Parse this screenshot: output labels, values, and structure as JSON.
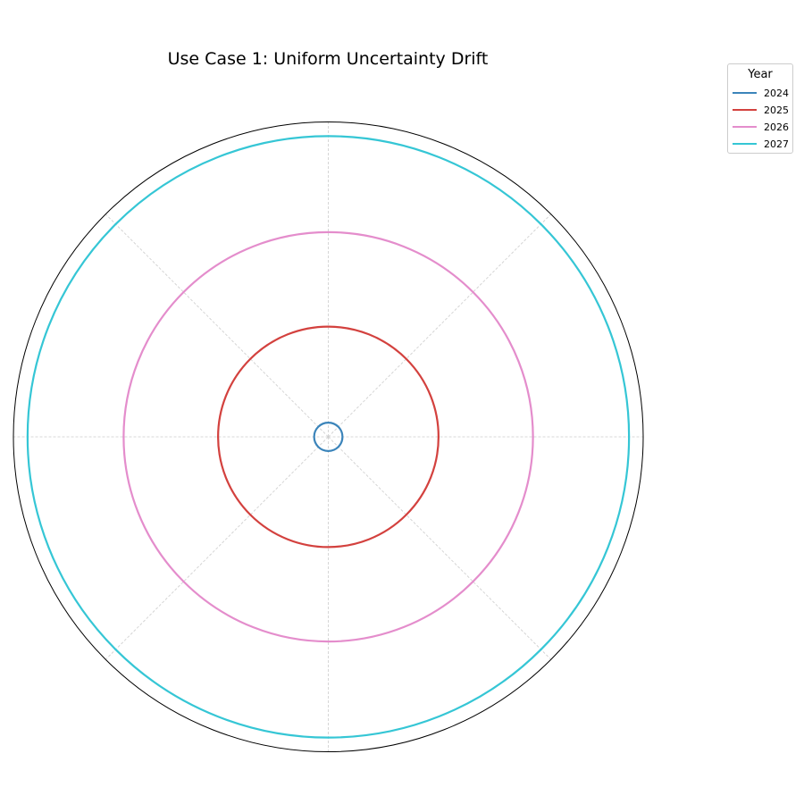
{
  "chart_data": {
    "type": "line",
    "projection": "polar",
    "title": "Use Case 1: Uniform Uncertainty Drift",
    "legend": {
      "title": "Year",
      "placement": "upper-right-outside"
    },
    "series": [
      {
        "name": "2024",
        "radius": 0.045,
        "color": "#3b84ba"
      },
      {
        "name": "2025",
        "radius": 0.35,
        "color": "#d3413e"
      },
      {
        "name": "2026",
        "radius": 0.65,
        "color": "#e48dcc"
      },
      {
        "name": "2027",
        "radius": 0.955,
        "color": "#35c6d5"
      }
    ],
    "rlim": [
      0,
      1
    ],
    "radial_ticks_shown": false,
    "angular_ticks_shown": false,
    "grid": {
      "angular_lines_deg": [
        0,
        45,
        90,
        135,
        180,
        225,
        270,
        315
      ],
      "style": "dashed",
      "color": "#cccccc"
    },
    "outer_ring_color": "#000000"
  }
}
